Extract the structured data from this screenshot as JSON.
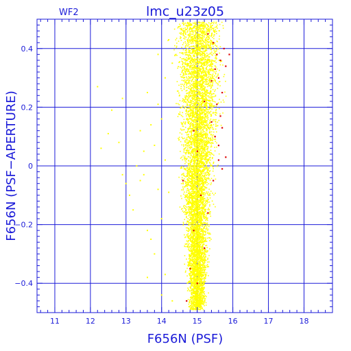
{
  "chart_data": {
    "type": "scatter",
    "title": "lmc_u23z05",
    "panel_label": "WF2",
    "xlabel": "F656N (PSF)",
    "ylabel": "F656N (PSF−APERTURE)",
    "xlim": [
      10.5,
      18.8
    ],
    "ylim": [
      -0.5,
      0.5
    ],
    "xticks": [
      11,
      12,
      13,
      14,
      15,
      16,
      17,
      18
    ],
    "xtick_labels": [
      "11",
      "12",
      "13",
      "14",
      "15",
      "16",
      "17",
      "18"
    ],
    "yticks": [
      -0.4,
      -0.2,
      0,
      0.2,
      0.4
    ],
    "ytick_labels": [
      "−0.4",
      "−0.2",
      "0",
      "0.2",
      "0.4"
    ],
    "grid": true,
    "colors": {
      "axes": "#1a1ad8",
      "grid": "#1a1ad8",
      "main_points": "#ffff00",
      "flagged_points": "#dd0000",
      "background": "#ffffff"
    },
    "series": [
      {
        "color": "#ffff00",
        "values": [
          [
            12.2,
            0.27
          ],
          [
            12.3,
            0.06
          ],
          [
            12.6,
            0.19
          ],
          [
            12.5,
            0.11
          ],
          [
            12.8,
            0.08
          ],
          [
            12.9,
            -0.03
          ],
          [
            13.0,
            -0.06
          ],
          [
            13.1,
            -0.1
          ],
          [
            12.9,
            0.23
          ],
          [
            13.2,
            -0.15
          ],
          [
            13.4,
            0.12
          ],
          [
            13.5,
            0.05
          ],
          [
            13.6,
            -0.22
          ],
          [
            13.7,
            -0.25
          ],
          [
            13.3,
            0.0
          ],
          [
            13.6,
            0.25
          ],
          [
            13.8,
            0.07
          ],
          [
            13.9,
            -0.08
          ],
          [
            14.0,
            0.16
          ],
          [
            13.8,
            -0.3
          ],
          [
            14.1,
            0.3
          ],
          [
            13.9,
            0.21
          ],
          [
            14.0,
            -0.18
          ],
          [
            13.7,
            0.14
          ],
          [
            14.1,
            -0.37
          ],
          [
            14.0,
            -0.44
          ],
          [
            14.2,
            0.43
          ],
          [
            14.3,
            0.35
          ],
          [
            14.1,
            0.02
          ],
          [
            13.5,
            -0.03
          ],
          [
            14.2,
            -0.09
          ],
          [
            13.9,
            0.38
          ],
          [
            13.4,
            -0.05
          ],
          [
            13.6,
            -0.38
          ],
          [
            14.3,
            -0.46
          ]
        ]
      },
      {
        "color": "#dd0000",
        "values": [
          [
            15.55,
            0.38
          ],
          [
            15.6,
            0.3
          ],
          [
            15.7,
            0.25
          ],
          [
            15.65,
            0.36
          ],
          [
            15.75,
            0.4
          ],
          [
            15.8,
            0.34
          ],
          [
            15.9,
            0.38
          ],
          [
            15.45,
            0.42
          ],
          [
            15.5,
            0.1
          ],
          [
            15.6,
            0.02
          ],
          [
            15.7,
            -0.01
          ],
          [
            15.6,
            0.07
          ],
          [
            15.8,
            0.03
          ],
          [
            15.4,
            0.15
          ],
          [
            15.55,
            0.21
          ],
          [
            15.45,
            -0.05
          ],
          [
            15.1,
            -0.1
          ],
          [
            14.9,
            -0.22
          ],
          [
            15.2,
            -0.28
          ],
          [
            14.8,
            -0.35
          ],
          [
            15.0,
            -0.4
          ],
          [
            14.7,
            -0.46
          ],
          [
            15.3,
            0.45
          ],
          [
            15.4,
            0.29
          ],
          [
            15.7,
            0.13
          ],
          [
            14.9,
            0.12
          ],
          [
            15.2,
            0.22
          ],
          [
            15.0,
            0.05
          ],
          [
            15.3,
            -0.16
          ],
          [
            14.6,
            -0.05
          ],
          [
            15.5,
            0.33
          ],
          [
            15.65,
            0.17
          ]
        ]
      }
    ]
  }
}
